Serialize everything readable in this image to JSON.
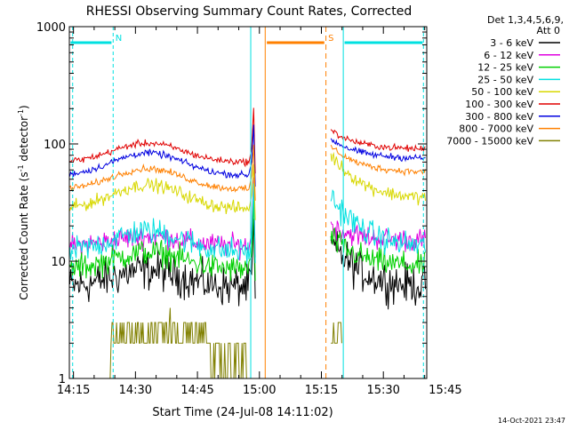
{
  "chart_data": {
    "type": "line",
    "title": "RHESSI Observing Summary Count Rates, Corrected",
    "xlabel": "Start Time (24-Jul-08 14:11:02)",
    "ylabel": "Corrected Count Rate (s",
    "ylabel_sup1": "-1",
    "ylabel_mid": " detector",
    "ylabel_sup2": "-1",
    "ylabel_end": ")",
    "yscale": "log",
    "ylim": [
      1,
      1000
    ],
    "xlim_minutes": [
      14.0,
      100.5
    ],
    "xticks": [
      {
        "label": "14:15",
        "min": 15
      },
      {
        "label": "14:30",
        "min": 30
      },
      {
        "label": "14:45",
        "min": 45
      },
      {
        "label": "15:00",
        "min": 60
      },
      {
        "label": "15:15",
        "min": 75
      },
      {
        "label": "15:30",
        "min": 90
      },
      {
        "label": "15:45",
        "min": 105
      }
    ],
    "yticks": [
      {
        "label": "1",
        "v": 1
      },
      {
        "label": "10",
        "v": 10
      },
      {
        "label": "100",
        "v": 100
      },
      {
        "label": "1000",
        "v": 1000
      }
    ],
    "legend_header": [
      "Det 1,3,4,5,6,9,",
      "Att 0"
    ],
    "series": [
      {
        "name": "3 - 6 keV",
        "color": "#000000",
        "base": 6,
        "noise": 0.12,
        "hump": 1.4,
        "post_start": 14,
        "post_end": 6
      },
      {
        "name": "6 - 12 keV",
        "color": "#e000e0",
        "base": 13.5,
        "noise": 0.07,
        "hump": 1.2,
        "post_start": 20,
        "post_end": 15
      },
      {
        "name": "12 - 25 keV",
        "color": "#00d000",
        "base": 8.5,
        "noise": 0.08,
        "hump": 1.4,
        "post_start": 16,
        "post_end": 9
      },
      {
        "name": "25 - 50 keV",
        "color": "#00e0e0",
        "base": 12,
        "noise": 0.08,
        "hump": 1.5,
        "post_start": 35,
        "post_end": 13
      },
      {
        "name": "50 - 100 keV",
        "color": "#d8d800",
        "base": 28,
        "noise": 0.04,
        "hump": 1.6,
        "post_start": 80,
        "post_end": 34
      },
      {
        "name": "100 - 300 keV",
        "color": "#e00000",
        "base": 70,
        "noise": 0.02,
        "hump": 1.45,
        "post_start": 130,
        "post_end": 90
      },
      {
        "name": "300 - 800 keV",
        "color": "#0000e0",
        "base": 54,
        "noise": 0.02,
        "hump": 1.55,
        "post_start": 110,
        "post_end": 75
      },
      {
        "name": "800 - 7000 keV",
        "color": "#ff8000",
        "base": 41,
        "noise": 0.02,
        "hump": 1.5,
        "post_start": 95,
        "post_end": 57
      },
      {
        "name": "7000 - 15000 keV",
        "color": "#808000",
        "base": 2,
        "noise": 0.0,
        "hump": 1.0,
        "post_start": 2,
        "post_end": 2
      }
    ],
    "flags": [
      {
        "label": "N",
        "color": "#00e0e0",
        "x0": 14.0,
        "x1": 24.5
      },
      {
        "label": "S",
        "color": "#ff8000",
        "x0": 61.5,
        "x1": 76.0
      }
    ],
    "timestamp": "14-Oct-2021 23:47"
  }
}
